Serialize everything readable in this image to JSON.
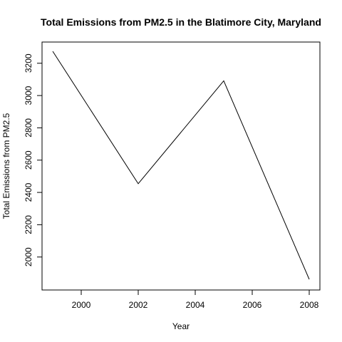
{
  "chart_data": {
    "type": "line",
    "title": "Total Emissions from PM2.5 in the Blatimore City, Maryland",
    "xlabel": "Year",
    "ylabel": "Total Emissions from PM2.5",
    "x": [
      1999,
      2002,
      2005,
      2008
    ],
    "y": [
      3274,
      2454,
      3091,
      1862
    ],
    "xlim": [
      1999,
      2008
    ],
    "ylim": [
      1862,
      3274
    ],
    "xticks": [
      2000,
      2002,
      2004,
      2006,
      2008
    ],
    "yticks": [
      2000,
      2200,
      2400,
      2600,
      2800,
      3000,
      3200
    ],
    "grid": false,
    "line_color": "#000000"
  }
}
